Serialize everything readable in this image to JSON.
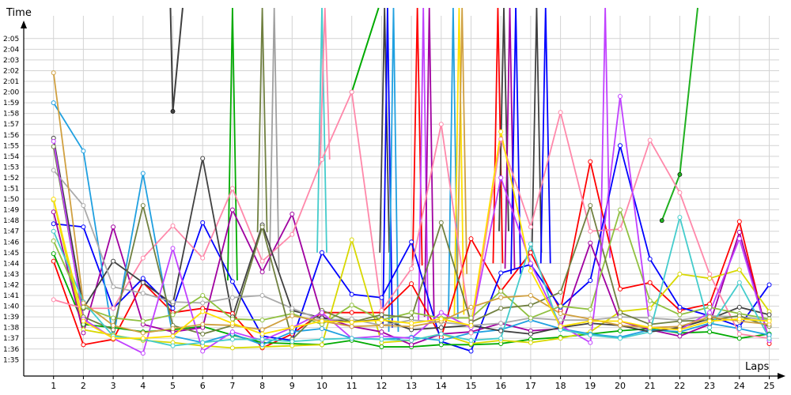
{
  "chart_data": {
    "type": "line",
    "xlabel": "Laps",
    "ylabel": "Time",
    "x_ticks": [
      1,
      2,
      3,
      4,
      5,
      6,
      7,
      8,
      9,
      10,
      11,
      12,
      13,
      14,
      15,
      16,
      17,
      18,
      19,
      20,
      21,
      22,
      23,
      24,
      25
    ],
    "y_ticks": [
      "1:35",
      "1:36",
      "1:37",
      "1:38",
      "1:39",
      "1:40",
      "1:41",
      "1:42",
      "1:43",
      "1:44",
      "1:45",
      "1:46",
      "1:47",
      "1:48",
      "1:49",
      "1:50",
      "1:51",
      "1:52",
      "1:53",
      "1:54",
      "1:55",
      "1:56",
      "1:57",
      "1:58",
      "1:59",
      "2:00",
      "2:01",
      "2:02",
      "2:03",
      "2:04",
      "2:05"
    ],
    "xlim": [
      0,
      25
    ],
    "ylim_seconds": [
      94,
      130
    ],
    "grid": true,
    "legend": "none",
    "series": [
      {
        "color": "#ff0000",
        "values": [
          104.2,
          96.4,
          96.9,
          102.2,
          99.4,
          99.8,
          99.3,
          96.1,
          97.4,
          99.4,
          99.4,
          99.4,
          102.1,
          97.1,
          106.3,
          101.4,
          105.0,
          99.6,
          113.5,
          101.6,
          102.2,
          99.6,
          100.2,
          107.9,
          96.5
        ]
      },
      {
        "color": "#0000ff",
        "values": [
          107.7,
          107.4,
          99.8,
          102.6,
          99.8,
          107.8,
          102.3,
          97.2,
          96.8,
          105.0,
          101.1,
          100.8,
          106.0,
          96.7,
          95.8,
          103.1,
          103.9,
          99.9,
          102.4,
          115.0,
          104.4,
          99.9,
          99.1,
          98.1,
          102.0
        ]
      },
      {
        "color": "#00aa00",
        "values": [
          104.9,
          98.3,
          98.0,
          97.6,
          97.8,
          98.1,
          97.3,
          96.6,
          96.5,
          96.4,
          96.8,
          96.2,
          96.2,
          96.4,
          96.4,
          96.5,
          96.9,
          97.1,
          97.4,
          97.7,
          97.9,
          97.5,
          97.6,
          97.0,
          97.4
        ]
      },
      {
        "color": "#d8d800",
        "values": [
          109.9,
          97.8,
          97.3,
          96.8,
          96.6,
          96.3,
          96.1,
          96.2,
          96.3,
          96.4,
          106.2,
          96.6,
          96.8,
          97.4,
          96.5,
          96.8,
          96.6,
          97.0,
          97.6,
          99.5,
          99.8,
          103.0,
          102.6,
          103.4,
          99.5
        ]
      },
      {
        "color": "#a000a0",
        "values": [
          108.8,
          97.5,
          107.4,
          98.3,
          97.6,
          98.0,
          109.0,
          103.2,
          108.6,
          99.0,
          98.1,
          97.6,
          96.4,
          97.4,
          97.6,
          98.4,
          97.7,
          97.9,
          105.9,
          98.6,
          97.8,
          97.2,
          98.3,
          106.9,
          96.8
        ]
      },
      {
        "color": "#20a0e0",
        "values": [
          119.0,
          114.5,
          97.0,
          112.4,
          97.2,
          96.6,
          97.4,
          96.4,
          97.6,
          97.9,
          97.0,
          96.9,
          97.1,
          96.8,
          97.5,
          97.8,
          98.7,
          97.9,
          97.4,
          97.1,
          97.8,
          97.6,
          98.4,
          97.9,
          97.3
        ]
      },
      {
        "color": "#ff88aa",
        "values": [
          100.6,
          99.8,
          99.8,
          104.5,
          107.5,
          104.5,
          111.0,
          104.2,
          106.7,
          113.7,
          120.0,
          99.6,
          103.5,
          117.0,
          97.5,
          115.6,
          107.4,
          118.1,
          107.0,
          107.2,
          115.5,
          110.6,
          103.0,
          97.4,
          97.0
        ]
      },
      {
        "color": "#404040",
        "values": [
          115.7,
          99.8,
          104.2,
          102.2,
          100.2,
          113.8,
          99.0,
          107.6,
          99.6,
          98.9,
          98.5,
          98.8,
          97.8,
          98.0,
          98.2,
          97.7,
          97.4,
          98.0,
          98.4,
          98.2,
          97.6,
          98.0,
          98.8,
          99.9,
          99.2
        ]
      },
      {
        "color": "#aaaaaa",
        "values": [
          112.7,
          109.4,
          101.8,
          101.2,
          100.4,
          100.3,
          100.8,
          101.0,
          99.8,
          98.7,
          98.8,
          98.2,
          98.7,
          98.5,
          98.2,
          98.4,
          98.9,
          98.7,
          98.7,
          99.0,
          98.9,
          98.7,
          99.1,
          99.0,
          98.7
        ]
      },
      {
        "color": "#90c040",
        "values": [
          106.1,
          99.9,
          98.9,
          98.6,
          99.2,
          101.0,
          98.8,
          98.7,
          99.3,
          98.3,
          100.1,
          98.7,
          99.4,
          98.9,
          98.9,
          101.4,
          98.9,
          100.0,
          99.7,
          109.0,
          100.5,
          99.2,
          99.9,
          99.3,
          98.8
        ]
      },
      {
        "color": "#708040",
        "values": [
          114.9,
          99.0,
          97.8,
          109.4,
          98.2,
          97.4,
          98.2,
          107.4,
          96.9,
          99.6,
          98.5,
          99.2,
          98.9,
          107.8,
          98.5,
          99.8,
          100.1,
          101.3,
          109.4,
          99.4,
          98.3,
          98.6,
          98.7,
          99.1,
          98.1
        ]
      },
      {
        "color": "#c040ff",
        "values": [
          115.4,
          98.8,
          97.0,
          95.6,
          105.4,
          95.8,
          97.6,
          96.8,
          98.0,
          99.4,
          97.0,
          97.2,
          97.0,
          99.4,
          98.0,
          112.0,
          104.0,
          98.2,
          96.6,
          119.6,
          98.0,
          97.8,
          99.4,
          106.3,
          96.8
        ]
      },
      {
        "color": "#44cccc",
        "values": [
          107.0,
          100.4,
          97.2,
          96.9,
          96.3,
          96.6,
          96.9,
          96.9,
          96.7,
          96.9,
          97.0,
          96.9,
          96.8,
          97.4,
          96.8,
          97.0,
          105.8,
          97.8,
          97.3,
          97.0,
          97.6,
          108.3,
          98.0,
          102.2,
          97.0
        ]
      },
      {
        "color": "#d0a040",
        "values": [
          121.8,
          100.3,
          98.2,
          97.5,
          97.9,
          98.3,
          98.2,
          97.8,
          99.1,
          98.6,
          98.1,
          98.2,
          98.1,
          98.6,
          99.9,
          100.8,
          101.0,
          99.3,
          98.8,
          98.2,
          98.0,
          98.1,
          99.0,
          98.6,
          98.3
        ]
      },
      {
        "color": "#ffe000",
        "values": [
          110.0,
          98.6,
          97.0,
          97.0,
          97.2,
          99.5,
          98.4,
          97.4,
          98.0,
          98.6,
          98.5,
          98.7,
          98.4,
          98.8,
          98.2,
          116.3,
          103.3,
          98.1,
          98.6,
          98.6,
          98.0,
          97.8,
          98.6,
          98.8,
          98.6
        ]
      }
    ],
    "off_chart_series": [
      {
        "color": "#404040",
        "x": [
          4.92,
          5,
          5.33
        ],
        "values": [
          135,
          118.2,
          135
        ]
      },
      {
        "color": "#00aa00",
        "x": [
          11,
          11.9
        ],
        "values": [
          120.0,
          135
        ]
      },
      {
        "color": "#20b020",
        "x": [
          21.4,
          22,
          22.6
        ],
        "values": [
          108,
          112.3,
          135
        ]
      }
    ],
    "spike_series": [
      {
        "color": "#00aa00",
        "lap": 7,
        "from": 102.4
      },
      {
        "color": "#708040",
        "lap": 8,
        "from": 106.9
      },
      {
        "color": "#a0a0a0",
        "lap": 8.4,
        "from": 103.3
      },
      {
        "color": "#44cccc",
        "lap": 10,
        "from": 105.0
      },
      {
        "color": "#ff88aa",
        "lap": 10.1,
        "from": 113.7
      },
      {
        "color": "#404040",
        "lap": 12.1,
        "from": 105.0
      },
      {
        "color": "#0000ff",
        "lap": 12.2,
        "from": 98.0
      },
      {
        "color": "#20a0e0",
        "lap": 12.4,
        "from": 97.6
      },
      {
        "color": "#ff0000",
        "lap": 13.2,
        "from": 103.8
      },
      {
        "color": "#c040ff",
        "lap": 13.4,
        "from": 98.6
      },
      {
        "color": "#a000a0",
        "lap": 13.6,
        "from": 99.0
      },
      {
        "color": "#20a0e0",
        "lap": 14.4,
        "from": 98.8
      },
      {
        "color": "#ffe000",
        "lap": 14.6,
        "from": 99.2
      },
      {
        "color": "#d0a040",
        "lap": 14.7,
        "from": 103.0
      },
      {
        "color": "#ff0000",
        "lap": 15.9,
        "from": 104.0
      },
      {
        "color": "#404040",
        "lap": 16.1,
        "from": 107.0
      },
      {
        "color": "#a000a0",
        "lap": 16.3,
        "from": 103.5
      },
      {
        "color": "#0000ff",
        "lap": 16.5,
        "from": 103.0
      },
      {
        "color": "#404040",
        "lap": 17.2,
        "from": 105.0
      },
      {
        "color": "#0000ff",
        "lap": 17.5,
        "from": 104.0
      },
      {
        "color": "#c040ff",
        "lap": 19.5,
        "from": 104.5
      }
    ]
  }
}
